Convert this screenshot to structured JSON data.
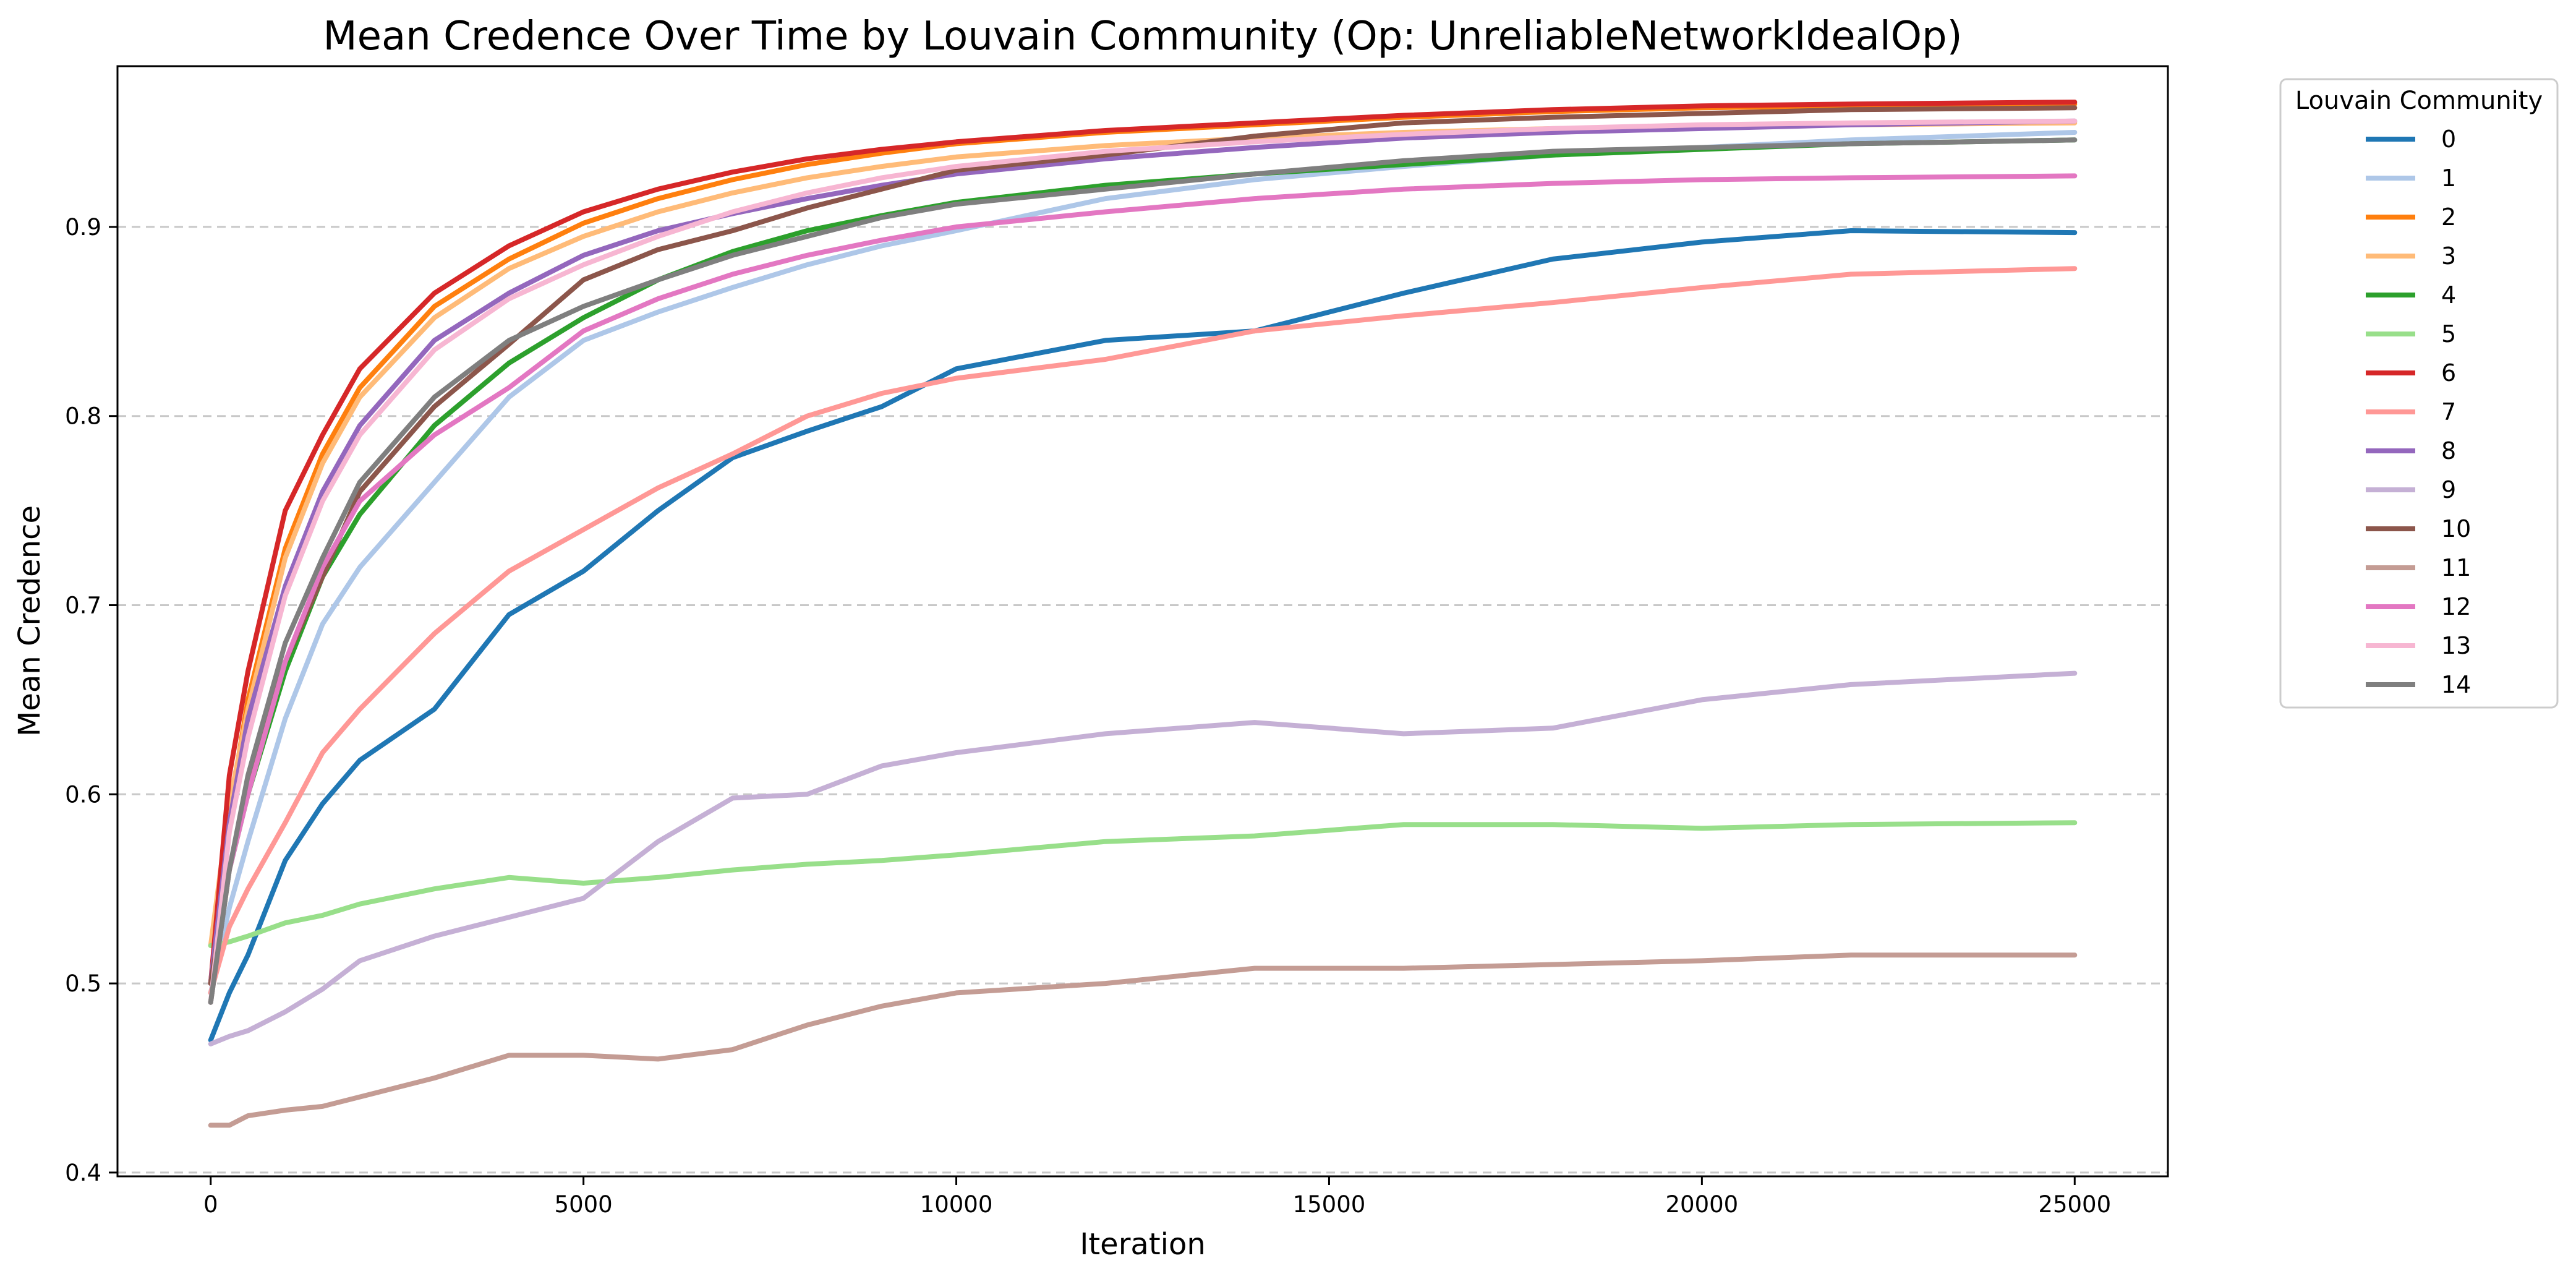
{
  "chart_data": {
    "type": "line",
    "title": "Mean Credence Over Time by Louvain Community (Op: UnreliableNetworkIdealOp)",
    "xlabel": "Iteration",
    "ylabel": "Mean Credence",
    "xlim": [
      -1250,
      26250
    ],
    "ylim": [
      0.398,
      0.985
    ],
    "xticks": [
      0,
      5000,
      10000,
      15000,
      20000,
      25000
    ],
    "xtick_labels": [
      "0",
      "5000",
      "10000",
      "15000",
      "20000",
      "25000"
    ],
    "yticks": [
      0.4,
      0.5,
      0.6,
      0.7,
      0.8,
      0.9
    ],
    "ytick_labels": [
      "0.4",
      "0.5",
      "0.6",
      "0.7",
      "0.8",
      "0.9"
    ],
    "grid": "y-dashed",
    "legend": {
      "title": "Louvain Community",
      "placement": "outside-right-top"
    },
    "x": [
      0,
      250,
      500,
      1000,
      1500,
      2000,
      3000,
      4000,
      5000,
      6000,
      7000,
      8000,
      9000,
      10000,
      12000,
      14000,
      16000,
      18000,
      20000,
      22000,
      25000
    ],
    "series": [
      {
        "name": "0",
        "color": "#1f77b4",
        "values": [
          0.47,
          0.495,
          0.515,
          0.565,
          0.595,
          0.618,
          0.645,
          0.695,
          0.718,
          0.75,
          0.778,
          0.792,
          0.805,
          0.825,
          0.84,
          0.845,
          0.865,
          0.883,
          0.892,
          0.898,
          0.897
        ]
      },
      {
        "name": "1",
        "color": "#aec7e8",
        "values": [
          0.495,
          0.54,
          0.575,
          0.64,
          0.69,
          0.72,
          0.765,
          0.81,
          0.84,
          0.855,
          0.868,
          0.88,
          0.89,
          0.898,
          0.915,
          0.925,
          0.932,
          0.938,
          0.942,
          0.946,
          0.95
        ]
      },
      {
        "name": "2",
        "color": "#ff7f0e",
        "values": [
          0.5,
          0.59,
          0.65,
          0.73,
          0.78,
          0.815,
          0.858,
          0.883,
          0.902,
          0.915,
          0.925,
          0.933,
          0.939,
          0.944,
          0.95,
          0.954,
          0.958,
          0.961,
          0.963,
          0.964,
          0.965
        ]
      },
      {
        "name": "3",
        "color": "#ffbb78",
        "values": [
          0.52,
          0.595,
          0.645,
          0.725,
          0.775,
          0.81,
          0.852,
          0.878,
          0.895,
          0.908,
          0.918,
          0.926,
          0.932,
          0.937,
          0.943,
          0.947,
          0.95,
          0.952,
          0.953,
          0.954,
          0.955
        ]
      },
      {
        "name": "4",
        "color": "#2ca02c",
        "values": [
          0.49,
          0.56,
          0.6,
          0.665,
          0.715,
          0.748,
          0.795,
          0.828,
          0.852,
          0.872,
          0.887,
          0.898,
          0.906,
          0.913,
          0.922,
          0.928,
          0.933,
          0.938,
          0.941,
          0.944,
          0.946
        ]
      },
      {
        "name": "5",
        "color": "#98df8a",
        "values": [
          0.52,
          0.522,
          0.525,
          0.532,
          0.536,
          0.542,
          0.55,
          0.556,
          0.553,
          0.556,
          0.56,
          0.563,
          0.565,
          0.568,
          0.575,
          0.578,
          0.584,
          0.584,
          0.582,
          0.584,
          0.585
        ]
      },
      {
        "name": "6",
        "color": "#d62728",
        "values": [
          0.5,
          0.61,
          0.665,
          0.75,
          0.79,
          0.825,
          0.865,
          0.89,
          0.908,
          0.92,
          0.929,
          0.936,
          0.941,
          0.945,
          0.951,
          0.955,
          0.959,
          0.962,
          0.964,
          0.965,
          0.966
        ]
      },
      {
        "name": "7",
        "color": "#ff9896",
        "values": [
          0.495,
          0.53,
          0.55,
          0.585,
          0.622,
          0.645,
          0.685,
          0.718,
          0.74,
          0.762,
          0.78,
          0.8,
          0.812,
          0.82,
          0.83,
          0.845,
          0.853,
          0.86,
          0.868,
          0.875,
          0.878
        ]
      },
      {
        "name": "8",
        "color": "#9467bd",
        "values": [
          0.5,
          0.585,
          0.64,
          0.71,
          0.76,
          0.795,
          0.84,
          0.865,
          0.885,
          0.898,
          0.907,
          0.915,
          0.922,
          0.928,
          0.936,
          0.942,
          0.947,
          0.95,
          0.952,
          0.954,
          0.956
        ]
      },
      {
        "name": "9",
        "color": "#c5b0d5",
        "values": [
          0.468,
          0.472,
          0.475,
          0.485,
          0.497,
          0.512,
          0.525,
          0.535,
          0.545,
          0.575,
          0.598,
          0.6,
          0.615,
          0.622,
          0.632,
          0.638,
          0.632,
          0.635,
          0.65,
          0.658,
          0.664
        ]
      },
      {
        "name": "10",
        "color": "#8c564b",
        "values": [
          0.5,
          0.56,
          0.605,
          0.67,
          0.715,
          0.76,
          0.805,
          0.838,
          0.872,
          0.888,
          0.898,
          0.91,
          0.92,
          0.93,
          0.938,
          0.948,
          0.955,
          0.958,
          0.96,
          0.962,
          0.963
        ]
      },
      {
        "name": "11",
        "color": "#c49c94",
        "values": [
          0.425,
          0.425,
          0.43,
          0.433,
          0.435,
          0.44,
          0.45,
          0.462,
          0.462,
          0.46,
          0.465,
          0.478,
          0.488,
          0.495,
          0.5,
          0.508,
          0.508,
          0.51,
          0.512,
          0.515,
          0.515
        ]
      },
      {
        "name": "12",
        "color": "#e377c2",
        "values": [
          0.49,
          0.56,
          0.6,
          0.67,
          0.72,
          0.755,
          0.79,
          0.815,
          0.845,
          0.862,
          0.875,
          0.885,
          0.893,
          0.9,
          0.908,
          0.915,
          0.92,
          0.923,
          0.925,
          0.926,
          0.927
        ]
      },
      {
        "name": "13",
        "color": "#f7b6d2",
        "values": [
          0.49,
          0.58,
          0.63,
          0.705,
          0.755,
          0.79,
          0.835,
          0.862,
          0.88,
          0.895,
          0.908,
          0.918,
          0.926,
          0.932,
          0.94,
          0.945,
          0.949,
          0.952,
          0.954,
          0.955,
          0.956
        ]
      },
      {
        "name": "14",
        "color": "#7f7f7f",
        "values": [
          0.49,
          0.56,
          0.61,
          0.68,
          0.725,
          0.765,
          0.81,
          0.84,
          0.858,
          0.872,
          0.885,
          0.895,
          0.905,
          0.912,
          0.92,
          0.928,
          0.935,
          0.94,
          0.942,
          0.944,
          0.946
        ]
      }
    ]
  }
}
